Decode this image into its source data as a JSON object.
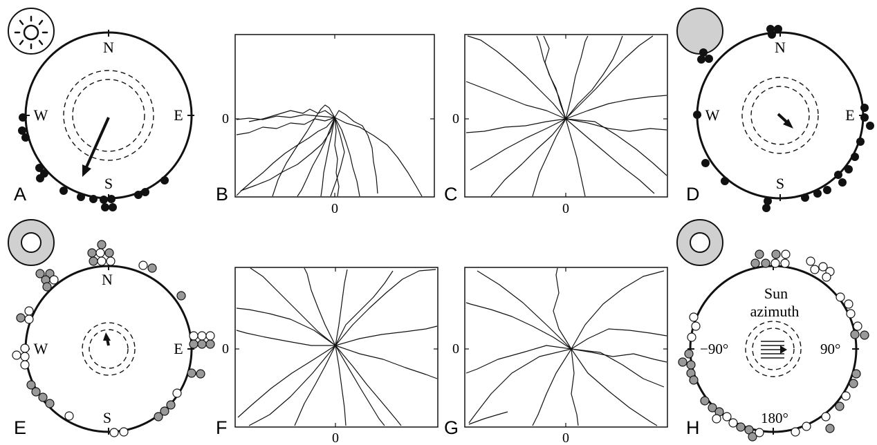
{
  "panel_labels": [
    "A",
    "B",
    "C",
    "D",
    "E",
    "F",
    "G",
    "H"
  ],
  "compass": {
    "north": "N",
    "south": "S",
    "east": "E",
    "west": "W"
  },
  "axis_zero": "0",
  "panel_h": {
    "title_line1": "Sun",
    "title_line2": "azimuth",
    "left_label": "−90°",
    "right_label": "90°",
    "bottom_label": "180°"
  },
  "colors": {
    "stroke": "#111111",
    "filled_dot": "#111111",
    "grey_dot": "#999999",
    "open_dot": "#ffffff",
    "icon_grey": "#d0d0d0"
  },
  "icons": [
    "sun-icon",
    "full-disc-icon",
    "ring-icon"
  ]
}
